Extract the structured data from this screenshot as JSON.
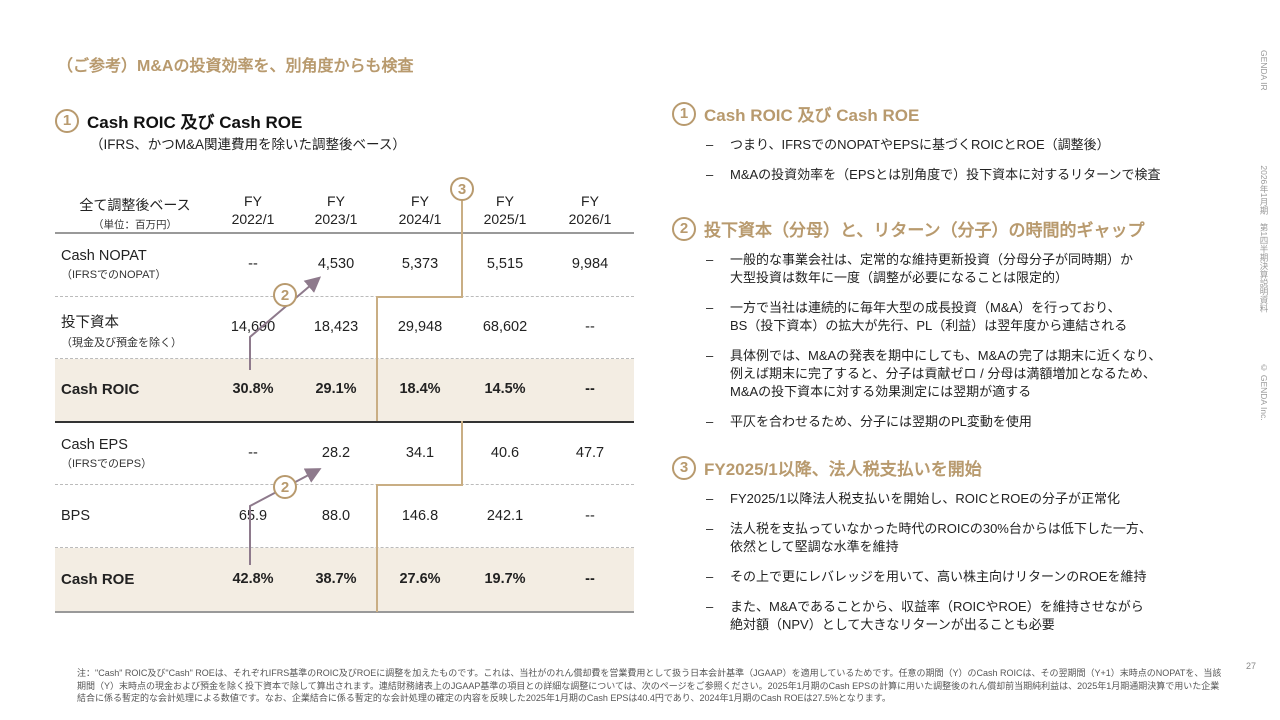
{
  "title": "（ご参考）M&Aの投資効率を、別角度からも検査",
  "side": {
    "brand": "GENDA IR",
    "doc": "2026年1月期　第1四半期決算説明資料",
    "copyright": "© GENDA Inc."
  },
  "left": {
    "num": "1",
    "heading": "Cash ROIC 及び Cash ROE",
    "subheading": "（IFRS、かつM&A関連費用を除いた調整後ベース）"
  },
  "table": {
    "corner": "全て調整後ベース",
    "unit": "（単位：百万円）",
    "columns": [
      [
        "FY",
        "2022/1"
      ],
      [
        "FY",
        "2023/1"
      ],
      [
        "FY",
        "2024/1"
      ],
      [
        "FY",
        "2025/1"
      ],
      [
        "FY",
        "2026/1"
      ]
    ],
    "rows": [
      {
        "label": "Cash NOPAT",
        "sub": "（IFRSでのNOPAT）",
        "values": [
          "--",
          "4,530",
          "5,373",
          "5,515",
          "9,984"
        ],
        "bold": false
      },
      {
        "label": "投下資本",
        "sub": "（現金及び預金を除く）",
        "values": [
          "14,690",
          "18,423",
          "29,948",
          "68,602",
          "--"
        ],
        "bold": false
      },
      {
        "label": "Cash ROIC",
        "sub": "",
        "values": [
          "30.8%",
          "29.1%",
          "18.4%",
          "14.5%",
          "--"
        ],
        "bold": true
      },
      {
        "label": "Cash EPS",
        "sub": "（IFRSでのEPS）",
        "values": [
          "--",
          "28.2",
          "34.1",
          "40.6",
          "47.7"
        ],
        "bold": false
      },
      {
        "label": "BPS",
        "sub": "",
        "values": [
          "65.9",
          "88.0",
          "146.8",
          "242.1",
          "--"
        ],
        "bold": false
      },
      {
        "label": "Cash ROE",
        "sub": "",
        "values": [
          "42.8%",
          "38.7%",
          "27.6%",
          "19.7%",
          "--"
        ],
        "bold": true
      }
    ],
    "markers": {
      "gap": "2",
      "tax": "3"
    }
  },
  "sections": [
    {
      "num": "1",
      "heading": "Cash ROIC 及び Cash ROE",
      "bullets": [
        "つまり、IFRSでのNOPATやEPSに基づくROICとROE（調整後）",
        "M&Aの投資効率を（EPSとは別角度で）投下資本に対するリターンで検査"
      ]
    },
    {
      "num": "2",
      "heading": "投下資本（分母）と、リターン（分子）の時間的ギャップ",
      "bullets": [
        "一般的な事業会社は、定常的な維持更新投資（分母分子が同時期）か\n大型投資は数年に一度（調整が必要になることは限定的）",
        "一方で当社は連続的に毎年大型の成長投資（M&A）を行っており、\nBS（投下資本）の拡大が先行、PL（利益）は翌年度から連結される",
        "具体例では、M&Aの発表を期中にしても、M&Aの完了は期末に近くなり、\n例えば期末に完了すると、分子は貢献ゼロ / 分母は満額増加となるため、\nM&Aの投下資本に対する効果測定には翌期が適する",
        "平仄を合わせるため、分子には翌期のPL変動を使用"
      ]
    },
    {
      "num": "3",
      "heading": "FY2025/1以降、法人税支払いを開始",
      "bullets": [
        "FY2025/1以降法人税支払いを開始し、ROICとROEの分子が正常化",
        "法人税を支払っていなかった時代のROICの30%台からは低下した一方、\n依然として堅調な水準を維持",
        "その上で更にレバレッジを用いて、高い株主向けリターンのROEを維持",
        "また、M&Aであることから、収益率（ROICやROE）を維持させながら\n絶対額（NPV）として大きなリターンが出ることも必要"
      ]
    }
  ],
  "note": "注：\"Cash\" ROIC及び\"Cash\" ROEは、それぞれIFRS基準のROIC及びROEに調整を加えたものです。これは、当社がのれん償却費を営業費用として扱う日本会計基準（JGAAP）を適用しているためです。任意の期間（Y）のCash ROICは、その翌期間（Y+1）末時点のNOPATを、当該期間（Y）末時点の現金および預金を除く投下資本で除して算出されます。連結財務諸表上のJGAAP基準の項目との詳細な調整については、次のページをご参照ください。2025年1月期のCash EPSの計算に用いた調整後のれん償却前当期純利益は、2025年1月期通期決算で用いた企業結合に係る暫定的な会計処理による数値です。なお、企業結合に係る暫定的な会計処理の確定の内容を反映した2025年1月期のCash EPSは40.4円であり、2024年1月期のCash ROEは27.5%となります。",
  "page": "27",
  "colors": {
    "accent": "#b89a6e",
    "arrow": "#8e7a8c",
    "highlight": "#f3ede3"
  }
}
